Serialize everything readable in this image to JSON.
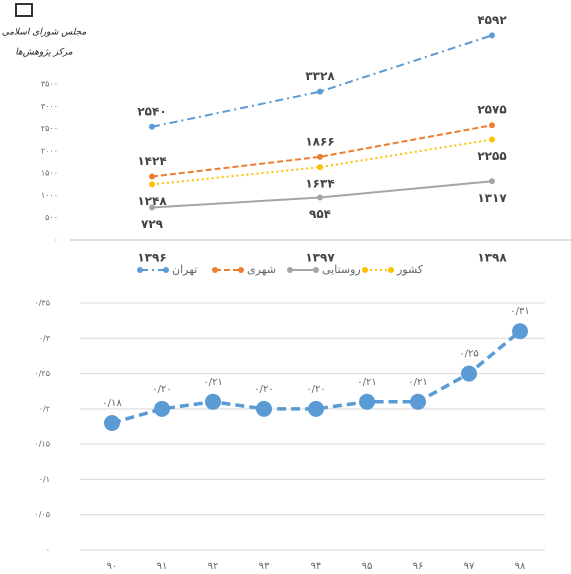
{
  "logo": {
    "line1": "مجلس شورای اسلامی",
    "line2": "مرکز پژوهش‌ها"
  },
  "chart_data": [
    {
      "type": "line",
      "categories": [
        "۱۳۹۶",
        "۱۳۹۷",
        "۱۳۹۸"
      ],
      "series": [
        {
          "name": "تهران",
          "color": "#5b9bd5",
          "dash": "8 4 2 4",
          "values": [
            2540,
            3328,
            4592
          ],
          "value_labels": [
            "۲۵۴۰",
            "۳۳۲۸",
            "۴۵۹۲"
          ]
        },
        {
          "name": "شهری",
          "color": "#ed7d31",
          "dash": "6 3",
          "values": [
            1424,
            1866,
            2575
          ],
          "value_labels": [
            "۱۴۲۴",
            "۱۸۶۶",
            "۲۵۷۵"
          ]
        },
        {
          "name": "روستایی",
          "color": "#a5a5a5",
          "dash": "none",
          "values": [
            729,
            954,
            1317
          ],
          "value_labels": [
            "۷۲۹",
            "۹۵۴",
            "۱۳۱۷"
          ]
        },
        {
          "name": "کشور",
          "color": "#ffc000",
          "dash": "2 3",
          "values": [
            1248,
            1634,
            2255
          ],
          "value_labels": [
            "۱۲۴۸",
            "۱۶۳۴",
            "۲۲۵۵"
          ]
        }
      ],
      "ylim": [
        0,
        3500
      ],
      "yticks": [
        {
          "value": 0,
          "label": "۰"
        },
        {
          "value": 500,
          "label": "۵۰۰"
        },
        {
          "value": 1000,
          "label": "۱۰۰۰"
        },
        {
          "value": 1500,
          "label": "۱۵۰۰"
        },
        {
          "value": 2000,
          "label": "۲۰۰۰"
        },
        {
          "value": 2500,
          "label": "۲۵۰۰"
        },
        {
          "value": 3000,
          "label": "۳۰۰۰"
        },
        {
          "value": 3500,
          "label": "۳۵۰۰"
        }
      ],
      "grid": false,
      "legend": "bottom"
    },
    {
      "type": "line",
      "categories": [
        "۹۰",
        "۹۱",
        "۹۲",
        "۹۳",
        "۹۴",
        "۹۵",
        "۹۶",
        "۹۷",
        "۹۸"
      ],
      "series": [
        {
          "color": "#5b9bd5",
          "dash": "9 5",
          "values": [
            0.18,
            0.2,
            0.21,
            0.2,
            0.2,
            0.21,
            0.21,
            0.25,
            0.31
          ],
          "value_labels": [
            "۰/۱۸",
            "۰/۲۰",
            "۰/۲۱",
            "۰/۲۰",
            "۰/۲۰",
            "۰/۲۱",
            "۰/۲۱",
            "۰/۲۵",
            "۰/۳۱"
          ]
        }
      ],
      "ylim": [
        0,
        0.35
      ],
      "yticks": [
        {
          "value": 0,
          "label": "۰"
        },
        {
          "value": 0.05,
          "label": "۰/۰۵"
        },
        {
          "value": 0.1,
          "label": "۰/۱"
        },
        {
          "value": 0.15,
          "label": "۰/۱۵"
        },
        {
          "value": 0.2,
          "label": "۰/۲"
        },
        {
          "value": 0.25,
          "label": "۰/۲۵"
        },
        {
          "value": 0.3,
          "label": "۰/۳"
        },
        {
          "value": 0.35,
          "label": "۰/۳۵"
        }
      ],
      "grid": true
    }
  ]
}
